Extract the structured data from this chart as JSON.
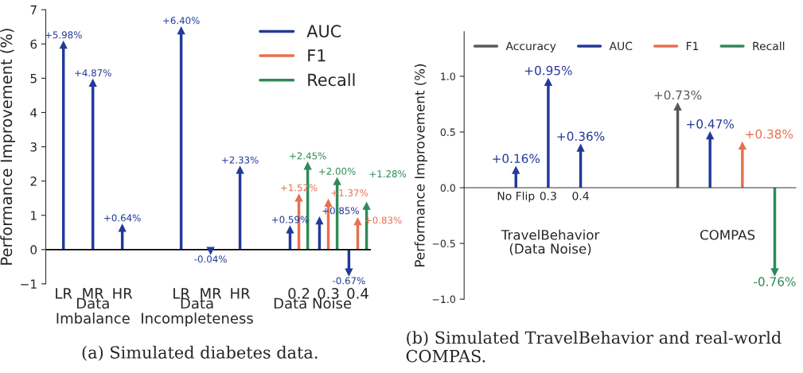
{
  "chart_data": [
    {
      "type": "lollipop",
      "title": "(a) Simulated diabetes data.",
      "ylabel": "Performance Improvement (%)",
      "marker": "triangle",
      "legend": "top right",
      "categories": [
        "LR",
        "MR",
        "HR",
        null,
        "LR",
        "MR",
        "HR",
        null,
        "0.2",
        "0.3",
        "0.4"
      ],
      "series": [
        {
          "name": "AUC",
          "color": "#23399a",
          "values": [
            5.98,
            4.87,
            0.64,
            null,
            6.4,
            -0.04,
            2.33,
            null,
            0.59,
            0.85,
            -0.67
          ],
          "value_labels": [
            "+5.98%",
            "+4.87%",
            "+0.64%",
            null,
            "+6.40%",
            "-0.04%",
            "+2.33%",
            null,
            "+0.59%",
            "+0.85%",
            "-0.67%"
          ]
        },
        {
          "name": "F1",
          "color": "#e8704f",
          "values": [
            null,
            null,
            null,
            null,
            null,
            null,
            null,
            null,
            1.52,
            1.37,
            0.83
          ],
          "value_labels": [
            null,
            null,
            null,
            null,
            null,
            null,
            null,
            null,
            "+1.52%",
            "+1.37%",
            "+0.83%"
          ]
        },
        {
          "name": "Recall",
          "color": "#2e8b57",
          "values": [
            null,
            null,
            null,
            null,
            null,
            null,
            null,
            null,
            2.45,
            2.0,
            1.28
          ],
          "value_labels": [
            null,
            null,
            null,
            null,
            null,
            null,
            null,
            null,
            "+2.45%",
            "+2.00%",
            "+1.28%"
          ]
        }
      ],
      "ylim": [
        -1,
        7
      ],
      "yticks": [
        {
          "value": -1,
          "label": "−1"
        },
        0,
        1,
        2,
        3,
        4,
        5,
        6,
        7
      ],
      "annotations": [
        "Data\nImbalance",
        "Data\nIncompleteness",
        "Data Noise"
      ]
    },
    {
      "type": "lollipop",
      "title": "(b) Simulated TravelBehavior and real-world COMPAS.",
      "ylabel": "Performance Improvement (%)",
      "marker": "triangle",
      "legend": "top",
      "categories": [
        "No Flip",
        "0.3",
        "0.4",
        null,
        null,
        null,
        null,
        null,
        null
      ],
      "series": [
        {
          "name": "Accuracy",
          "color": "#595959",
          "values": [
            null,
            null,
            null,
            null,
            null,
            0.73,
            null,
            null,
            null
          ],
          "value_labels": [
            null,
            null,
            null,
            null,
            null,
            "+0.73%",
            null,
            null,
            null
          ]
        },
        {
          "name": "AUC",
          "color": "#23399a",
          "values": [
            0.16,
            0.95,
            0.36,
            null,
            null,
            null,
            0.47,
            null,
            null
          ],
          "value_labels": [
            "+0.16%",
            "+0.95%",
            "+0.36%",
            null,
            null,
            null,
            "+0.47%",
            null,
            null
          ]
        },
        {
          "name": "F1",
          "color": "#e8704f",
          "values": [
            null,
            null,
            null,
            null,
            null,
            null,
            null,
            0.38,
            null
          ],
          "value_labels": [
            null,
            null,
            null,
            null,
            null,
            null,
            null,
            "+0.38%",
            null
          ]
        },
        {
          "name": "Recall",
          "color": "#2e8b57",
          "values": [
            null,
            null,
            null,
            null,
            null,
            null,
            null,
            null,
            -0.76
          ],
          "value_labels": [
            null,
            null,
            null,
            null,
            null,
            null,
            null,
            null,
            "-0.76%"
          ]
        }
      ],
      "ylim": [
        -1.0,
        1.4
      ],
      "yticks": [
        {
          "value": -1.0,
          "label": "−1.0"
        },
        {
          "value": -0.5,
          "label": "−0.5"
        },
        {
          "value": 0.0,
          "label": "0.0"
        },
        {
          "value": 0.5,
          "label": "0.5"
        },
        {
          "value": 1.0,
          "label": "1.0"
        }
      ],
      "annotations": [
        "TravelBehavior\n(Data Noise)",
        "COMPAS"
      ]
    }
  ]
}
